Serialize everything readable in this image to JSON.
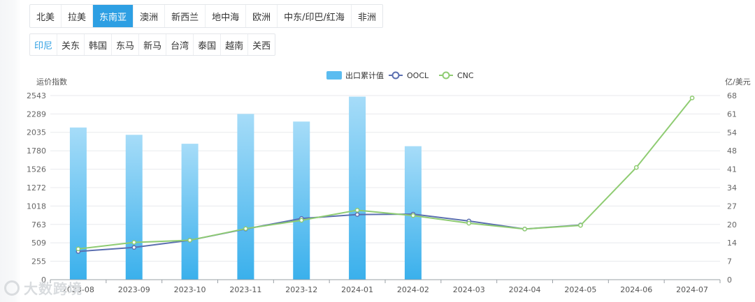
{
  "region_tabs": [
    {
      "label": "北美"
    },
    {
      "label": "拉美"
    },
    {
      "label": "东南亚"
    },
    {
      "label": "澳洲"
    },
    {
      "label": "新西兰"
    },
    {
      "label": "地中海"
    },
    {
      "label": "欧洲"
    },
    {
      "label": "中东/印巴/红海"
    },
    {
      "label": "非洲"
    }
  ],
  "region_active": "东南亚",
  "country_tabs": [
    {
      "label": "印尼"
    },
    {
      "label": "关东"
    },
    {
      "label": "韩国"
    },
    {
      "label": "东马"
    },
    {
      "label": "新马"
    },
    {
      "label": "台湾"
    },
    {
      "label": "泰国"
    },
    {
      "label": "越南"
    },
    {
      "label": "关西"
    }
  ],
  "country_active": "印尼",
  "watermark": {
    "text": "大数跨境"
  },
  "chart_data": {
    "type": "bar",
    "title": "",
    "ylabel": "运价指数",
    "y2label": "亿/美元",
    "categories": [
      "2023-08",
      "2023-09",
      "2023-10",
      "2023-11",
      "2023-12",
      "2024-01",
      "2024-02",
      "2024-03",
      "2024-04",
      "2024-05",
      "2024-06",
      "2024-07"
    ],
    "x_tick_labels": [
      "2023-08",
      "2023-09",
      "2023-10",
      "2023-11",
      "2023-12",
      "2024-01",
      "2024-02",
      "2024-03",
      "2024-04",
      "2024-05",
      "2024-06",
      "2024-07"
    ],
    "y_ticks": [
      0,
      255,
      509,
      763,
      1018,
      1272,
      1526,
      1780,
      2035,
      2289,
      2543
    ],
    "y2_ticks": [
      0,
      7,
      14,
      20,
      27,
      34,
      41,
      48,
      54,
      61,
      68
    ],
    "ylim": [
      0,
      2543
    ],
    "y2lim": [
      0,
      68
    ],
    "legend_position": "top-center",
    "grid": true,
    "series": [
      {
        "name": "出口累计值",
        "kind": "bar",
        "axis": "right",
        "color": "#5bbcf0",
        "values": [
          56.2,
          53.5,
          50.2,
          61.2,
          58.4,
          67.6,
          49.3,
          null,
          null,
          null,
          null,
          null
        ]
      },
      {
        "name": "OOCL",
        "kind": "line",
        "axis": "left",
        "color": "#5b6fb0",
        "values": [
          390,
          445,
          545,
          700,
          845,
          900,
          905,
          810,
          700,
          755,
          null,
          null
        ]
      },
      {
        "name": "CNC",
        "kind": "line",
        "axis": "left",
        "color": "#8fcc72",
        "values": [
          425,
          515,
          545,
          705,
          820,
          960,
          885,
          780,
          700,
          750,
          1550,
          2510
        ]
      }
    ]
  }
}
